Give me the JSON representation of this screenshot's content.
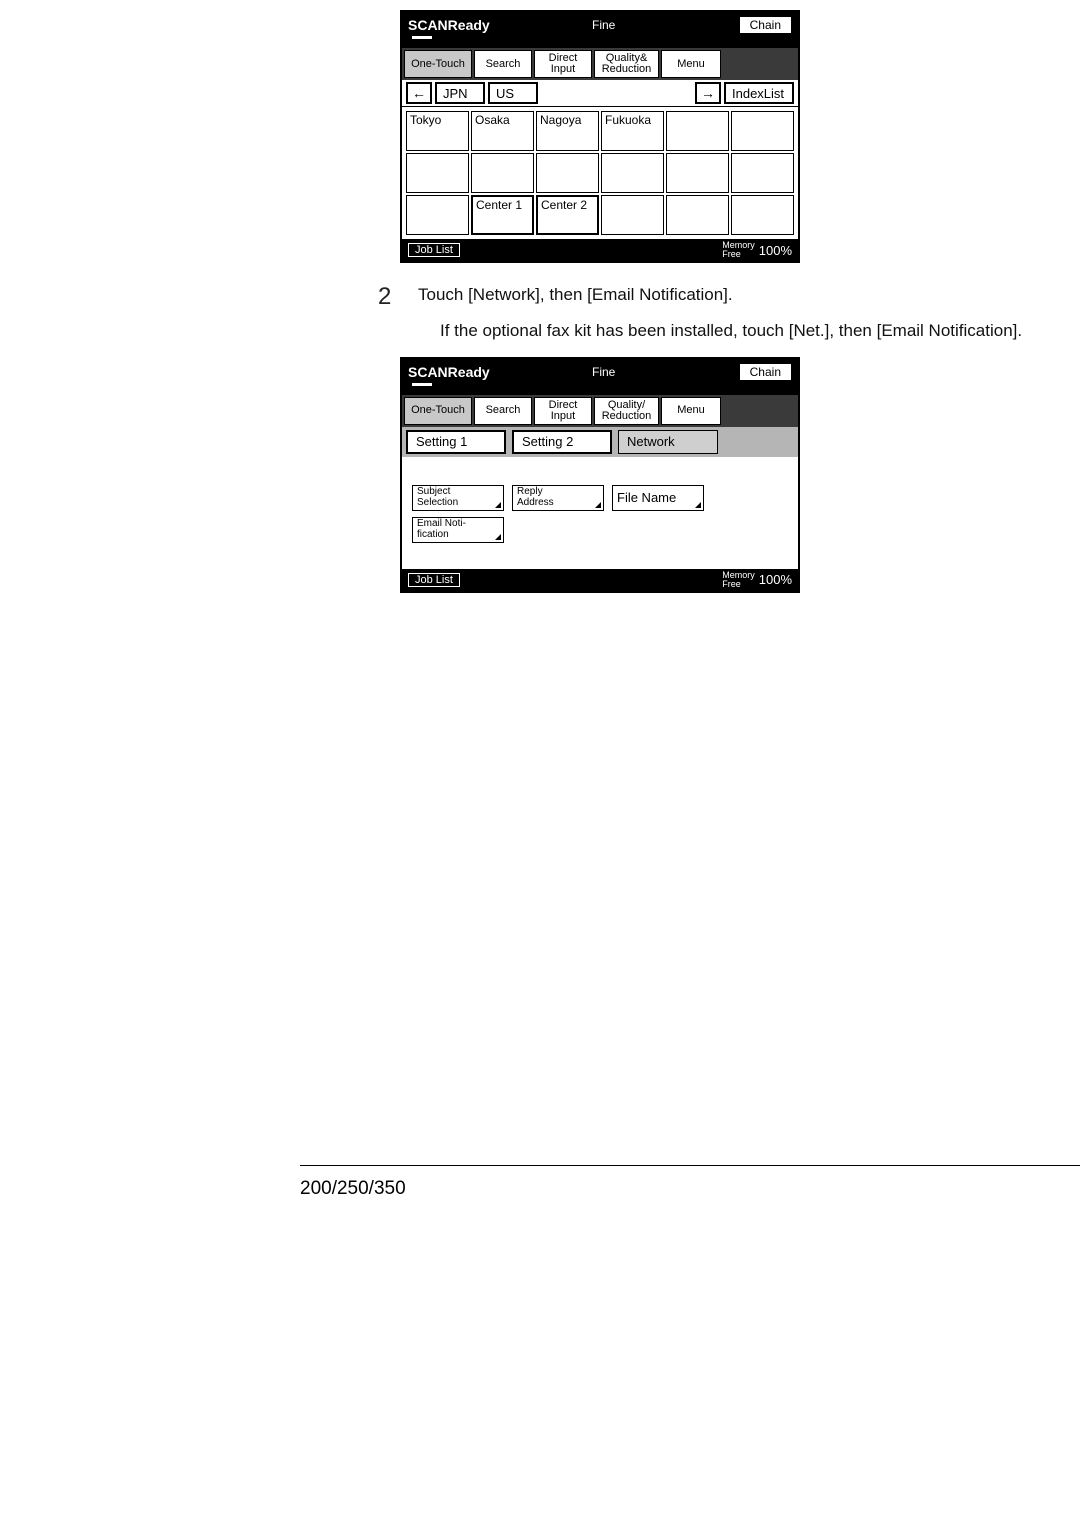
{
  "lcd1": {
    "header": {
      "title": "SCANReady",
      "mode": "Fine",
      "chain": "Chain"
    },
    "tabs": {
      "onetouch": "One-Touch",
      "search": "Search",
      "direct": "Direct\nInput",
      "quality": "Quality&\nReduction",
      "menu": "Menu"
    },
    "nav": {
      "left_arrow": "←",
      "jpn": "JPN",
      "us": "US",
      "right_arrow": "→",
      "indexlist": "IndexList"
    },
    "grid": [
      [
        "Tokyo",
        "Osaka",
        "Nagoya",
        "Fukuoka",
        "",
        ""
      ],
      [
        "",
        "",
        "",
        "",
        "",
        ""
      ],
      [
        "",
        "Center 1",
        "Center 2",
        "",
        "",
        ""
      ]
    ],
    "footer": {
      "joblist": "Job List",
      "memlabel": "Memory\nFree",
      "pct": "100%"
    }
  },
  "step2": {
    "num": "2",
    "main": "Touch [Network], then [Email Notification].",
    "sub": "If the optional fax kit has been installed, touch [Net.], then [Email Notification]."
  },
  "lcd2": {
    "header": {
      "title": "SCANReady",
      "mode": "Fine",
      "chain": "Chain"
    },
    "tabs": {
      "onetouch": "One-Touch",
      "search": "Search",
      "direct": "Direct\nInput",
      "quality": "Quality/\nReduction",
      "menu": "Menu"
    },
    "settings": {
      "s1": "Setting 1",
      "s2": "Setting 2",
      "net": "Network"
    },
    "opts": {
      "subject": "Subject\nSelection",
      "reply": "Reply\nAddress",
      "filename": "File Name",
      "email": "Email Noti-\nfication"
    },
    "footer": {
      "joblist": "Job List",
      "memlabel": "Memory\nFree",
      "pct": "100%"
    }
  },
  "page_footer": "200/250/350",
  "colors": {
    "black": "#000000",
    "white": "#ffffff",
    "grey_tab": "#c8c8c8",
    "grey_bar": "#b5b5b5"
  }
}
